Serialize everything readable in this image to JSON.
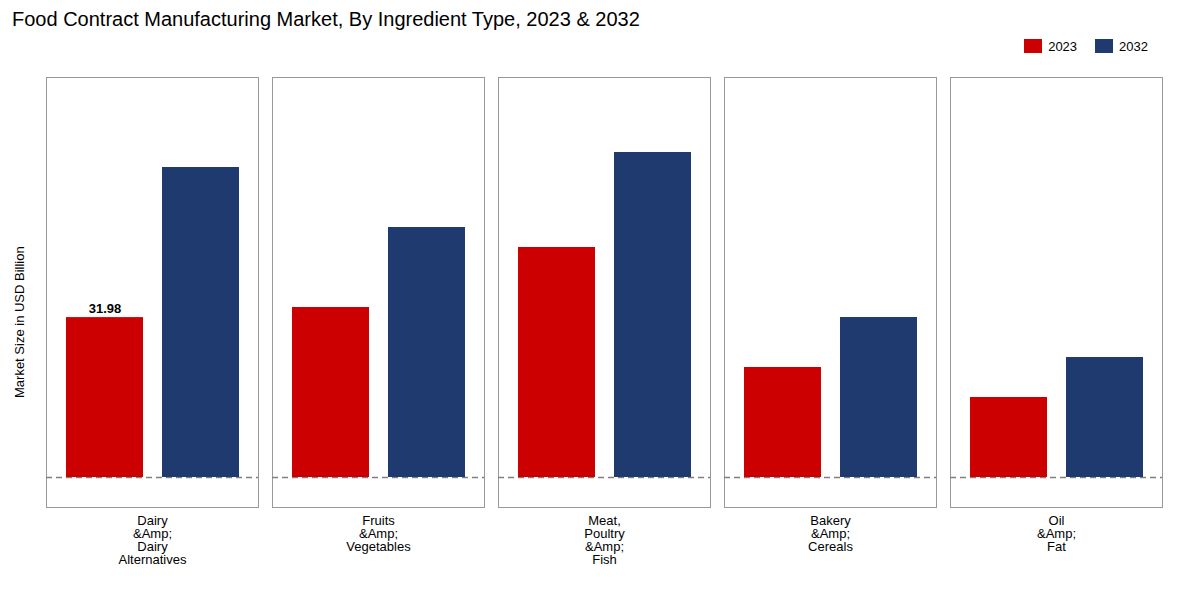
{
  "chart_data": {
    "type": "bar",
    "title": "Food Contract Manufacturing Market, By Ingredient Type, 2023 & 2032",
    "ylabel": "Market Size in USD Billion",
    "categories": [
      "Dairy\n&Amp;\nDairy\nAlternatives",
      "Fruits\n&Amp;\nVegetables",
      "Meat,\nPoultry\n&Amp;\nFish",
      "Bakery\n&Amp;\nCereals",
      "Oil\n&Amp;\nFat"
    ],
    "series": [
      {
        "name": "2023",
        "color": "#cc0000",
        "values": [
          31.98,
          34.0,
          46.0,
          22.0,
          16.0
        ]
      },
      {
        "name": "2032",
        "color": "#1e3a6e",
        "values": [
          62.0,
          50.0,
          65.0,
          32.0,
          24.0
        ]
      }
    ],
    "ylim": [
      -6,
      80
    ],
    "tick_labels": "x",
    "grid": false,
    "legend": "upper right",
    "annotations": [
      {
        "text": "31.98",
        "category": "Dairy\n&Amp;\nDairy\nAlternatives",
        "series": "2023",
        "y": 31.98
      }
    ],
    "hline": {
      "y": 0,
      "line_style": "dashed"
    }
  }
}
